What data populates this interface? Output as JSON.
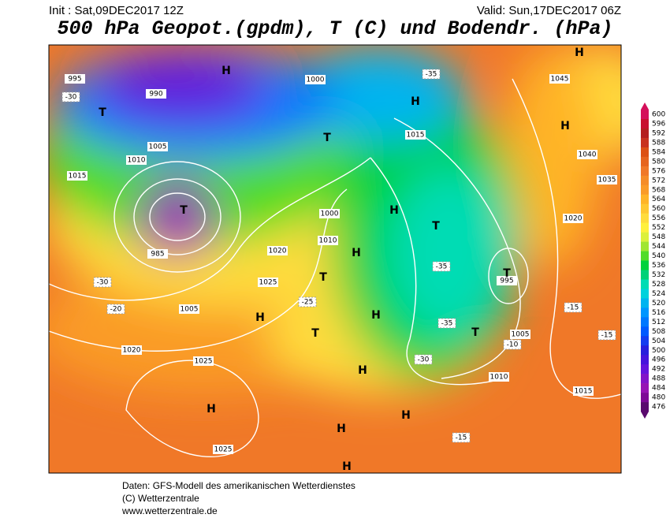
{
  "header": {
    "init": "Init : Sat,09DEC2017 12Z",
    "valid": "Valid: Sun,17DEC2017 06Z",
    "title": "500 hPa Geopot.(gpdm), T (C) und Bodendr. (hPa)"
  },
  "map": {
    "isobar_labels": [
      995,
      990,
      1000,
      1005,
      1010,
      1015,
      1020,
      1025,
      1020,
      1025,
      1025,
      1015,
      1010,
      1005,
      1045,
      1040,
      1035,
      1020,
      985,
      995,
      1015,
      1000,
      1010,
      1005
    ],
    "pressure_centers": [
      "H",
      "H",
      "H",
      "H",
      "H",
      "H",
      "H",
      "H",
      "H",
      "H",
      "H",
      "H",
      "H",
      "T",
      "T",
      "T",
      "T",
      "T",
      "T",
      "T",
      "T"
    ],
    "temperature_labels": [
      -30,
      -35,
      -35,
      -35,
      -30,
      -10,
      -15,
      -15,
      -30,
      -20,
      -25,
      -15
    ]
  },
  "colorbar": {
    "ticks": [
      600,
      596,
      592,
      588,
      584,
      580,
      576,
      572,
      568,
      564,
      560,
      556,
      552,
      548,
      544,
      540,
      536,
      532,
      528,
      524,
      520,
      516,
      512,
      508,
      504,
      500,
      496,
      492,
      488,
      484,
      480,
      476
    ],
    "colors": [
      "#d4105a",
      "#c8102e",
      "#b41e1e",
      "#c8321e",
      "#dc5014",
      "#e6641e",
      "#f07828",
      "#f58c28",
      "#fa9b28",
      "#ffb428",
      "#ffc832",
      "#ffdc3c",
      "#fff03c",
      "#dcf03c",
      "#a0e632",
      "#50dc28",
      "#00d23c",
      "#00d278",
      "#00dcb4",
      "#00d2dc",
      "#00b4f0",
      "#0096ff",
      "#0078ff",
      "#005aff",
      "#143cf0",
      "#281edc",
      "#4614dc",
      "#6414dc",
      "#8214c8",
      "#9614b4",
      "#7d0a96",
      "#5a0a6e"
    ]
  },
  "footer": {
    "line1": "Daten: GFS-Modell des amerikanischen Wetterdienstes",
    "line2": "(C) Wetterzentrale",
    "line3": "www.wetterzentrale.de"
  }
}
